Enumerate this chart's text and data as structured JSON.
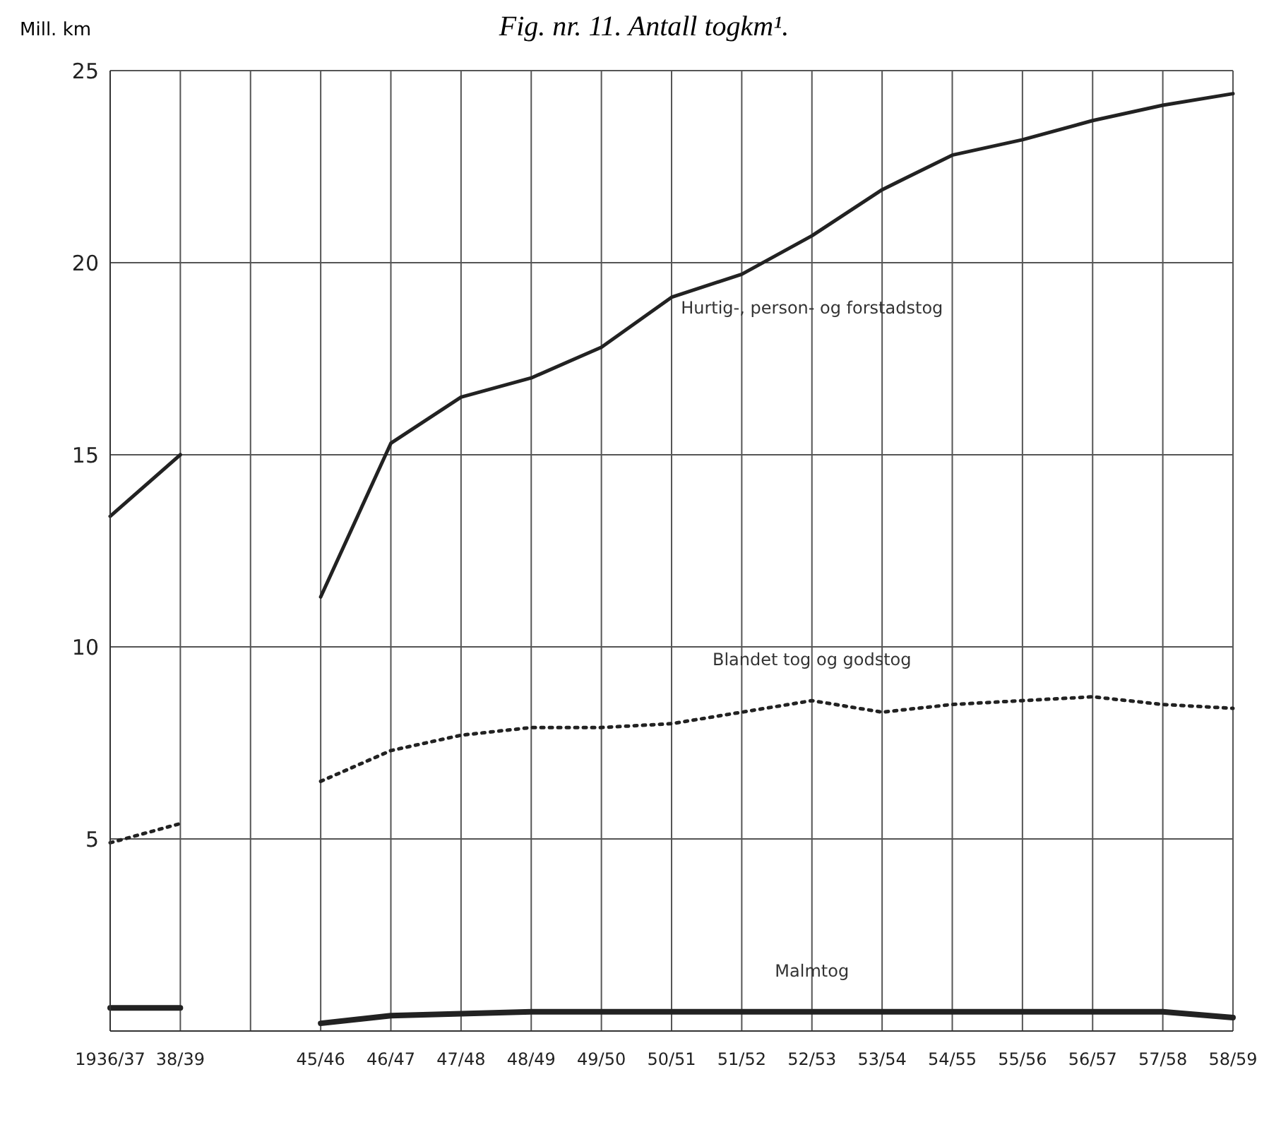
{
  "chart_data": {
    "type": "line",
    "title": "Fig. nr. 11. Antall togkm¹.",
    "ylabel": "Mill. km",
    "categories": [
      "1936/37",
      "38/39",
      null,
      "45/46",
      "46/47",
      "47/48",
      "48/49",
      "49/50",
      "50/51",
      "51/52",
      "52/53",
      "53/54",
      "54/55",
      "55/56",
      "56/57",
      "57/58",
      "58/59"
    ],
    "ylim": [
      0,
      25
    ],
    "yticks": [
      5,
      10,
      15,
      20,
      25
    ],
    "grid": true,
    "legend": false,
    "marker": "none",
    "series": [
      {
        "name": "Hurtig-, person- og forstadstog",
        "color": "#222222",
        "line_style": "solid",
        "values": [
          13.4,
          15.0,
          null,
          11.3,
          15.3,
          16.5,
          17.0,
          17.8,
          19.1,
          19.7,
          20.7,
          21.9,
          22.8,
          23.2,
          23.7,
          24.1,
          24.4
        ]
      },
      {
        "name": "Blandet tog og godstog",
        "color": "#222222",
        "line_style": "dotted",
        "values": [
          4.9,
          5.4,
          null,
          6.5,
          7.3,
          7.7,
          7.9,
          7.9,
          8.0,
          8.3,
          8.6,
          8.3,
          8.5,
          8.6,
          8.7,
          8.5,
          8.4
        ]
      },
      {
        "name": "Malmtog",
        "color": "#222222",
        "line_style": "solid",
        "values": [
          0.6,
          0.6,
          null,
          0.2,
          0.4,
          0.45,
          0.5,
          0.5,
          0.5,
          0.5,
          0.5,
          0.5,
          0.5,
          0.5,
          0.5,
          0.5,
          0.35
        ]
      }
    ]
  }
}
